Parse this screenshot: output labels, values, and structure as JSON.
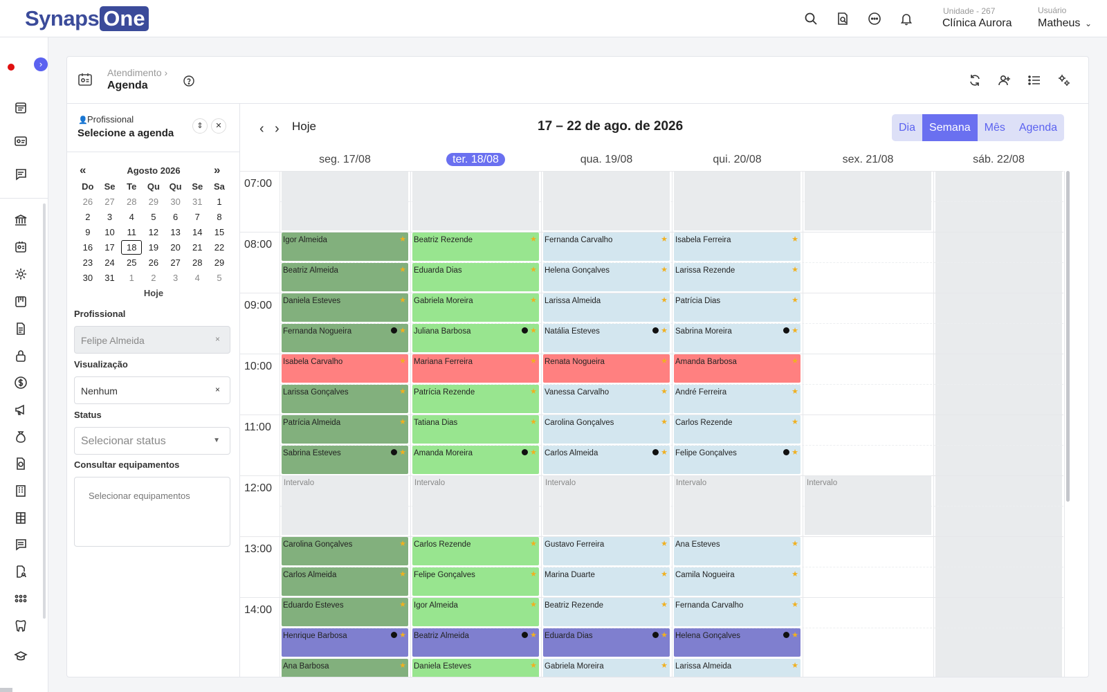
{
  "brand": {
    "part1": "Synaps",
    "part2": "One"
  },
  "topbar": {
    "unit_label": "Unidade - 267",
    "unit_name": "Clínica Aurora",
    "user_label": "Usuário",
    "user_name": "Matheus"
  },
  "page": {
    "breadcrumb": "Atendimento ›",
    "title": "Agenda"
  },
  "left": {
    "prof_label": "Profissional",
    "prof_select": "Selecione a agenda",
    "month_title": "Agosto 2026",
    "weekdays": [
      "Do",
      "Se",
      "Te",
      "Qu",
      "Qu",
      "Se",
      "Sa"
    ],
    "weeks": [
      [
        26,
        27,
        28,
        29,
        30,
        31,
        1
      ],
      [
        2,
        3,
        4,
        5,
        6,
        7,
        8
      ],
      [
        9,
        10,
        11,
        12,
        13,
        14,
        15
      ],
      [
        16,
        17,
        18,
        19,
        20,
        21,
        22
      ],
      [
        23,
        24,
        25,
        26,
        27,
        28,
        29
      ],
      [
        30,
        31,
        1,
        2,
        3,
        4,
        5
      ]
    ],
    "selected_day": 18,
    "today_link": "Hoje",
    "filters": {
      "professional_label": "Profissional",
      "professional_value": "Felipe Almeida",
      "view_label": "Visualização",
      "view_value": "Nenhum",
      "status_label": "Status",
      "status_placeholder": "Selecionar status",
      "equip_label": "Consultar equipamentos",
      "equip_placeholder": "Selecionar equipamentos"
    }
  },
  "calendar": {
    "today_btn": "Hoje",
    "title": "17 – 22 de ago. de 2026",
    "views": [
      "Dia",
      "Semana",
      "Mês",
      "Agenda"
    ],
    "active_view": "Semana",
    "days": [
      "seg. 17/08",
      "ter. 18/08",
      "qua. 19/08",
      "qui. 20/08",
      "sex. 21/08",
      "sáb. 22/08"
    ],
    "today_index": 1,
    "hours": [
      "07:00",
      "08:00",
      "09:00",
      "10:00",
      "11:00",
      "12:00",
      "13:00",
      "14:00"
    ],
    "break_label": "Intervalo",
    "colors": {
      "seg": "#82b07d",
      "ter": "#98e58f",
      "qua": "#d3e6ef",
      "qui": "#d3e6ef",
      "late": "#ff8080",
      "afternoon": "#7f7fcf",
      "accent": "#6a70f0",
      "star": "#f0b020"
    },
    "events": [
      [
        "Igor Almeida",
        "Beatriz Rezende",
        "Fernanda Carvalho",
        "Isabela Ferreira"
      ],
      [
        "Beatriz Almeida",
        "Eduarda Dias",
        "Helena Gonçalves",
        "Larissa Rezende"
      ],
      [
        "Daniela Esteves",
        "Gabriela Moreira",
        "Larissa Almeida",
        "Patrícia Dias"
      ],
      [
        "Fernanda Nogueira",
        "Juliana Barbosa",
        "Natália Esteves",
        "Sabrina Moreira"
      ],
      [
        "Isabela Carvalho",
        "Mariana Ferreira",
        "Renata Nogueira",
        "Amanda Barbosa"
      ],
      [
        "Larissa Gonçalves",
        "Patrícia Rezende",
        "Vanessa Carvalho",
        "André Ferreira"
      ],
      [
        "Patrícia Almeida",
        "Tatiana Dias",
        "Carolina Gonçalves",
        "Carlos Rezende"
      ],
      [
        "Sabrina Esteves",
        "Amanda Moreira",
        "Carlos Almeida",
        "Felipe Gonçalves"
      ],
      [
        "Carolina Gonçalves",
        "Carlos Rezende",
        "Gustavo Ferreira",
        "Ana Esteves"
      ],
      [
        "Carlos Almeida",
        "Felipe Gonçalves",
        "Marina Duarte",
        "Camila Nogueira"
      ],
      [
        "Eduardo Esteves",
        "Igor Almeida",
        "Beatriz Rezende",
        "Fernanda Carvalho"
      ],
      [
        "Henrique Barbosa",
        "Beatriz Almeida",
        "Eduarda Dias",
        "Helena Gonçalves"
      ],
      [
        "Ana Barbosa",
        "Daniela Esteves",
        "Gabriela Moreira",
        "Larissa Almeida"
      ]
    ]
  }
}
